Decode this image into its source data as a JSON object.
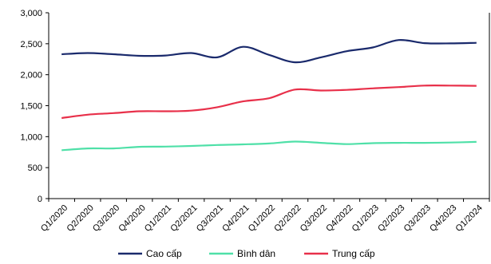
{
  "chart_data": {
    "type": "line",
    "title": "",
    "xlabel": "",
    "ylabel": "",
    "ylim": [
      0,
      3000
    ],
    "yticks": [
      0,
      500,
      1000,
      1500,
      2000,
      2500,
      3000
    ],
    "ytick_labels": [
      "0",
      "500",
      "1,000",
      "1,500",
      "2,000",
      "2,500",
      "3,000"
    ],
    "grid": false,
    "legend_position": "bottom",
    "categories": [
      "Q1/2020",
      "Q2/2020",
      "Q3/2020",
      "Q4/2020",
      "Q1/2021",
      "Q2/2021",
      "Q3/2021",
      "Q4/2021",
      "Q1/2022",
      "Q2/2022",
      "Q3/2022",
      "Q4/2022",
      "Q1/2023",
      "Q2/2023",
      "Q3/2023",
      "Q4/2023",
      "Q1/2024"
    ],
    "series": [
      {
        "name": "Cao cấp",
        "color": "#1a2a6c",
        "values": [
          2330,
          2350,
          2330,
          2305,
          2310,
          2350,
          2280,
          2450,
          2320,
          2200,
          2280,
          2380,
          2440,
          2560,
          2510,
          2505,
          2515
        ]
      },
      {
        "name": "Bình dân",
        "color": "#4fe0a8",
        "values": [
          780,
          810,
          810,
          835,
          840,
          850,
          865,
          875,
          890,
          920,
          900,
          880,
          895,
          900,
          900,
          905,
          915
        ]
      },
      {
        "name": "Trung cấp",
        "color": "#e8304a",
        "values": [
          1300,
          1355,
          1380,
          1410,
          1410,
          1420,
          1475,
          1570,
          1620,
          1760,
          1745,
          1755,
          1780,
          1800,
          1825,
          1825,
          1820
        ]
      }
    ]
  }
}
